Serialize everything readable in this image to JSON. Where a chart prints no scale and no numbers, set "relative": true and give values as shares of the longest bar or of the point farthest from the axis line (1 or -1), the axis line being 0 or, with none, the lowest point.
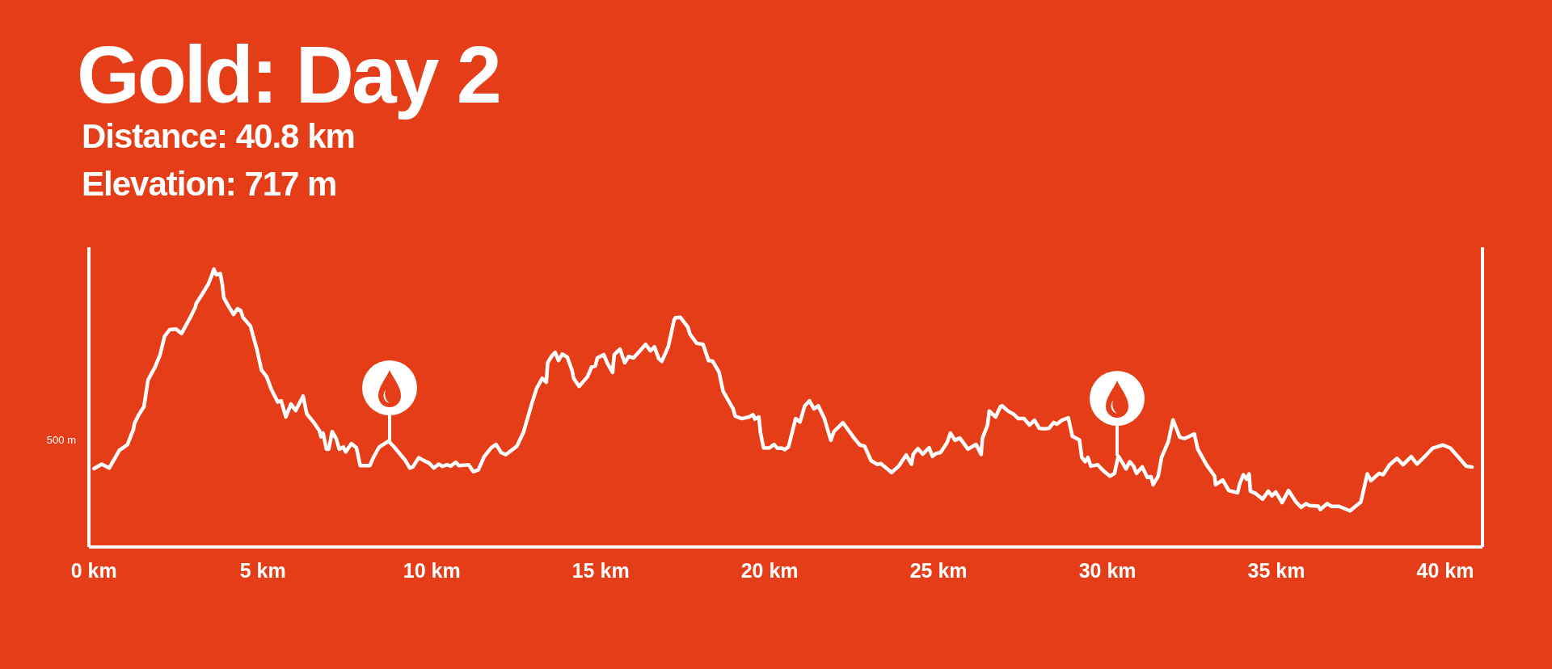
{
  "chart_data": {
    "type": "line",
    "title": "Gold: Day 2",
    "subtitle": "Distance: 40.8 km",
    "annotations": [
      "Elevation: 717 m",
      "500 m"
    ],
    "relative": true,
    "color": "#ffffff",
    "xlim": [
      -0.15,
      41.1
    ],
    "xticks": [
      {
        "value": 0,
        "label": "0 km"
      },
      {
        "value": 5,
        "label": "5 km"
      },
      {
        "value": 10,
        "label": "10 km"
      },
      {
        "value": 15,
        "label": "15 km"
      },
      {
        "value": 20,
        "label": "20 km"
      },
      {
        "value": 25,
        "label": "25 km"
      },
      {
        "value": 30,
        "label": "30 km"
      },
      {
        "value": 35,
        "label": "35 km"
      },
      {
        "value": 40,
        "label": "40 km"
      }
    ],
    "x": [
      0.0,
      0.23,
      0.45,
      0.75,
      0.99,
      1.17,
      1.2,
      1.33,
      1.48,
      1.6,
      1.81,
      1.95,
      2.09,
      2.24,
      2.43,
      2.59,
      2.86,
      3.0,
      3.03,
      3.19,
      3.39,
      3.51,
      3.55,
      3.62,
      3.74,
      3.8,
      3.84,
      3.96,
      4.13,
      4.25,
      4.34,
      4.41,
      4.63,
      4.82,
      4.96,
      5.11,
      5.25,
      5.44,
      5.54,
      5.68,
      5.83,
      5.97,
      6.19,
      6.3,
      6.5,
      6.67,
      6.72,
      6.78,
      6.88,
      6.95,
      7.05,
      7.17,
      7.26,
      7.38,
      7.45,
      7.62,
      7.77,
      7.88,
      8.03,
      8.17,
      8.27,
      8.44,
      8.72,
      8.87,
      9.22,
      9.35,
      9.44,
      9.61,
      9.83,
      9.92,
      10.06,
      10.2,
      10.32,
      10.45,
      10.56,
      10.71,
      10.8,
      11.09,
      11.23,
      11.38,
      11.55,
      11.76,
      11.9,
      12.05,
      12.19,
      12.52,
      12.72,
      12.95,
      13.1,
      13.27,
      13.39,
      13.43,
      13.56,
      13.65,
      13.75,
      13.86,
      14.01,
      14.15,
      14.2,
      14.36,
      14.61,
      14.73,
      14.84,
      14.9,
      15.09,
      15.2,
      15.35,
      15.4,
      15.57,
      15.71,
      15.83,
      15.97,
      16.33,
      16.47,
      16.59,
      16.72,
      16.81,
      17.0,
      17.17,
      17.21,
      17.36,
      17.58,
      17.64,
      17.84,
      18.03,
      18.19,
      18.31,
      18.5,
      18.62,
      18.92,
      18.98,
      19.17,
      19.39,
      19.51,
      19.56,
      19.68,
      19.73,
      19.82,
      19.99,
      20.13,
      20.23,
      20.35,
      20.45,
      20.56,
      20.77,
      20.9,
      21.04,
      21.18,
      21.31,
      21.44,
      21.62,
      21.81,
      21.9,
      22.17,
      22.5,
      22.67,
      22.81,
      23.0,
      23.19,
      23.29,
      23.61,
      23.82,
      24.04,
      24.2,
      24.25,
      24.39,
      24.53,
      24.72,
      24.82,
      24.92,
      25.06,
      25.25,
      25.35,
      25.49,
      25.63,
      25.87,
      26.11,
      26.26,
      26.3,
      26.45,
      26.5,
      26.69,
      26.83,
      26.88,
      27.07,
      27.21,
      27.36,
      27.53,
      27.69,
      27.84,
      27.98,
      28.12,
      28.27,
      28.41,
      28.5,
      28.65,
      28.84,
      28.96,
      29.17,
      29.24,
      29.34,
      29.42,
      29.51,
      29.71,
      29.89,
      30.07,
      30.21,
      30.32,
      30.45,
      30.55,
      30.66,
      30.77,
      30.86,
      31.03,
      31.18,
      31.29,
      31.35,
      31.5,
      31.6,
      31.8,
      31.94,
      32.14,
      32.29,
      32.57,
      32.67,
      32.93,
      33.17,
      33.2,
      33.41,
      33.59,
      33.85,
      33.91,
      34.02,
      34.12,
      34.19,
      34.23,
      34.38,
      34.59,
      34.76,
      34.87,
      34.98,
      35.17,
      35.36,
      35.58,
      35.73,
      35.88,
      35.98,
      36.24,
      36.3,
      36.5,
      36.64,
      36.86,
      37.18,
      37.5,
      37.69,
      37.8,
      38.04,
      38.16,
      38.35,
      38.57,
      38.75,
      38.99,
      39.16,
      39.42,
      39.63,
      39.93,
      40.15,
      40.36,
      40.62,
      40.79
    ],
    "values": [
      0.282,
      0.298,
      0.284,
      0.348,
      0.368,
      0.424,
      0.445,
      0.477,
      0.505,
      0.601,
      0.648,
      0.689,
      0.758,
      0.782,
      0.784,
      0.768,
      0.828,
      0.863,
      0.877,
      0.907,
      0.947,
      0.985,
      1,
      0.979,
      0.984,
      0.944,
      0.898,
      0.871,
      0.837,
      0.857,
      0.851,
      0.826,
      0.795,
      0.712,
      0.636,
      0.613,
      0.567,
      0.522,
      0.526,
      0.468,
      0.514,
      0.491,
      0.543,
      0.479,
      0.449,
      0.419,
      0.396,
      0.41,
      0.352,
      0.352,
      0.415,
      0.39,
      0.352,
      0.36,
      0.342,
      0.372,
      0.357,
      0.293,
      0.293,
      0.293,
      0.322,
      0.359,
      0.381,
      0.362,
      0.311,
      0.284,
      0.288,
      0.321,
      0.307,
      0.302,
      0.284,
      0.298,
      0.29,
      0.296,
      0.291,
      0.305,
      0.293,
      0.296,
      0.271,
      0.278,
      0.325,
      0.357,
      0.369,
      0.34,
      0.332,
      0.363,
      0.415,
      0.512,
      0.57,
      0.607,
      0.593,
      0.663,
      0.689,
      0.7,
      0.671,
      0.694,
      0.683,
      0.636,
      0.607,
      0.578,
      0.613,
      0.648,
      0.651,
      0.68,
      0.692,
      0.66,
      0.628,
      0.692,
      0.712,
      0.663,
      0.686,
      0.68,
      0.729,
      0.706,
      0.72,
      0.677,
      0.668,
      0.721,
      0.816,
      0.825,
      0.826,
      0.791,
      0.766,
      0.733,
      0.729,
      0.671,
      0.669,
      0.63,
      0.561,
      0.497,
      0.471,
      0.462,
      0.468,
      0.476,
      0.46,
      0.468,
      0.41,
      0.357,
      0.356,
      0.369,
      0.355,
      0.356,
      0.35,
      0.361,
      0.462,
      0.45,
      0.508,
      0.526,
      0.497,
      0.508,
      0.462,
      0.384,
      0.415,
      0.447,
      0.392,
      0.367,
      0.363,
      0.311,
      0.297,
      0.3,
      0.268,
      0.291,
      0.331,
      0.298,
      0.334,
      0.354,
      0.334,
      0.357,
      0.326,
      0.336,
      0.34,
      0.375,
      0.41,
      0.384,
      0.392,
      0.352,
      0.369,
      0.333,
      0.392,
      0.439,
      0.489,
      0.468,
      0.505,
      0.508,
      0.488,
      0.479,
      0.462,
      0.462,
      0.439,
      0.456,
      0.427,
      0.425,
      0.427,
      0.448,
      0.442,
      0.456,
      0.465,
      0.398,
      0.385,
      0.322,
      0.307,
      0.322,
      0.291,
      0.296,
      0.273,
      0.255,
      0.265,
      0.327,
      0.302,
      0.281,
      0.307,
      0.291,
      0.265,
      0.288,
      0.25,
      0.253,
      0.224,
      0.255,
      0.322,
      0.379,
      0.457,
      0.395,
      0.39,
      0.407,
      0.353,
      0.296,
      0.255,
      0.224,
      0.241,
      0.203,
      0.195,
      0.226,
      0.26,
      0.244,
      0.263,
      0.201,
      0.193,
      0.172,
      0.201,
      0.184,
      0.198,
      0.16,
      0.203,
      0.162,
      0.143,
      0.156,
      0.149,
      0.147,
      0.135,
      0.156,
      0.146,
      0.146,
      0.13,
      0.162,
      0.263,
      0.239,
      0.265,
      0.26,
      0.296,
      0.319,
      0.296,
      0.325,
      0.298,
      0.329,
      0.356,
      0.367,
      0.356,
      0.327,
      0.291,
      0.288
    ]
  }
}
